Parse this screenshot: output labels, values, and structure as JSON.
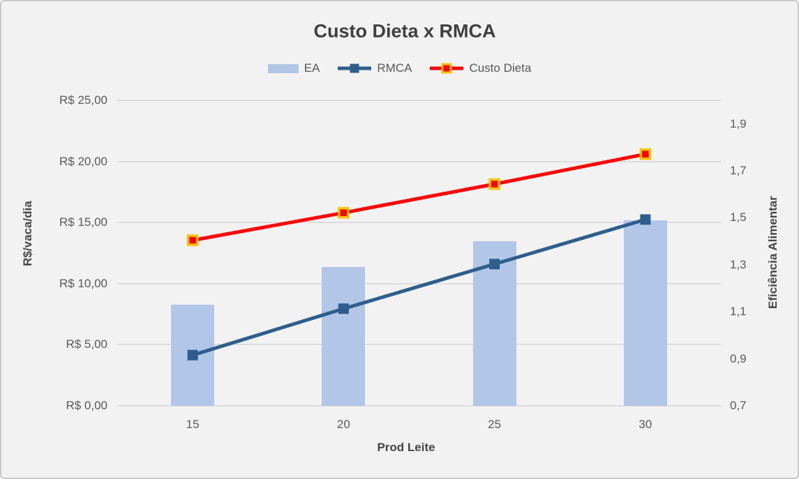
{
  "title": "Custo Dieta x RMCA",
  "window": {
    "background": "#F2F2F2",
    "border_color": "#C9C9C9",
    "gridline_color": "#DCDCDC",
    "tick_text_color": "#595959",
    "title_text_color": "#3F3F3F"
  },
  "chart_data": {
    "type": "combo-bar-line",
    "title": "Custo Dieta x RMCA",
    "categories": [
      "15",
      "20",
      "25",
      "30"
    ],
    "x_axis": {
      "title": "Prod Leite"
    },
    "left_axis": {
      "title": "R$/vaca/dia",
      "min": 0,
      "max": 25,
      "ticks": [
        {
          "label": "R$ 25,00",
          "value": 25
        },
        {
          "label": "R$ 20,00",
          "value": 20
        },
        {
          "label": "R$ 15,00",
          "value": 15
        },
        {
          "label": "R$ 10,00",
          "value": 10
        },
        {
          "label": "R$ 5,00",
          "value": 5
        },
        {
          "label": "R$ 0,00",
          "value": 0
        }
      ]
    },
    "right_axis": {
      "title": "Eficiência Alimentar",
      "min": 0.7,
      "max": 2.0,
      "ticks": [
        {
          "label": "1,9",
          "value": 1.9
        },
        {
          "label": "1,7",
          "value": 1.7
        },
        {
          "label": "1,5",
          "value": 1.5
        },
        {
          "label": "1,3",
          "value": 1.3
        },
        {
          "label": "1,1",
          "value": 1.1
        },
        {
          "label": "0,9",
          "value": 0.9
        },
        {
          "label": "0,7",
          "value": 0.7
        }
      ]
    },
    "gridlines": {
      "on": true,
      "source": "left_axis"
    },
    "legend_position": "top",
    "series": [
      {
        "name": "EA",
        "type": "bar",
        "axis": "right",
        "color": "#B2C7E8",
        "values": [
          1.13,
          1.29,
          1.4,
          1.49
        ]
      },
      {
        "name": "RMCA",
        "type": "line",
        "axis": "left",
        "color": "#2E5F8C",
        "marker": {
          "shape": "square",
          "fill": "#2E5F8C",
          "border": "#2E5F8C"
        },
        "values": [
          4.15,
          7.95,
          11.6,
          15.25
        ]
      },
      {
        "name": "Custo Dieta",
        "type": "line",
        "axis": "left",
        "color": "#FF0000",
        "marker": {
          "shape": "square",
          "fill": "#FF0000",
          "border": "#FFC000"
        },
        "values": [
          13.55,
          15.8,
          18.15,
          20.6
        ]
      }
    ]
  }
}
